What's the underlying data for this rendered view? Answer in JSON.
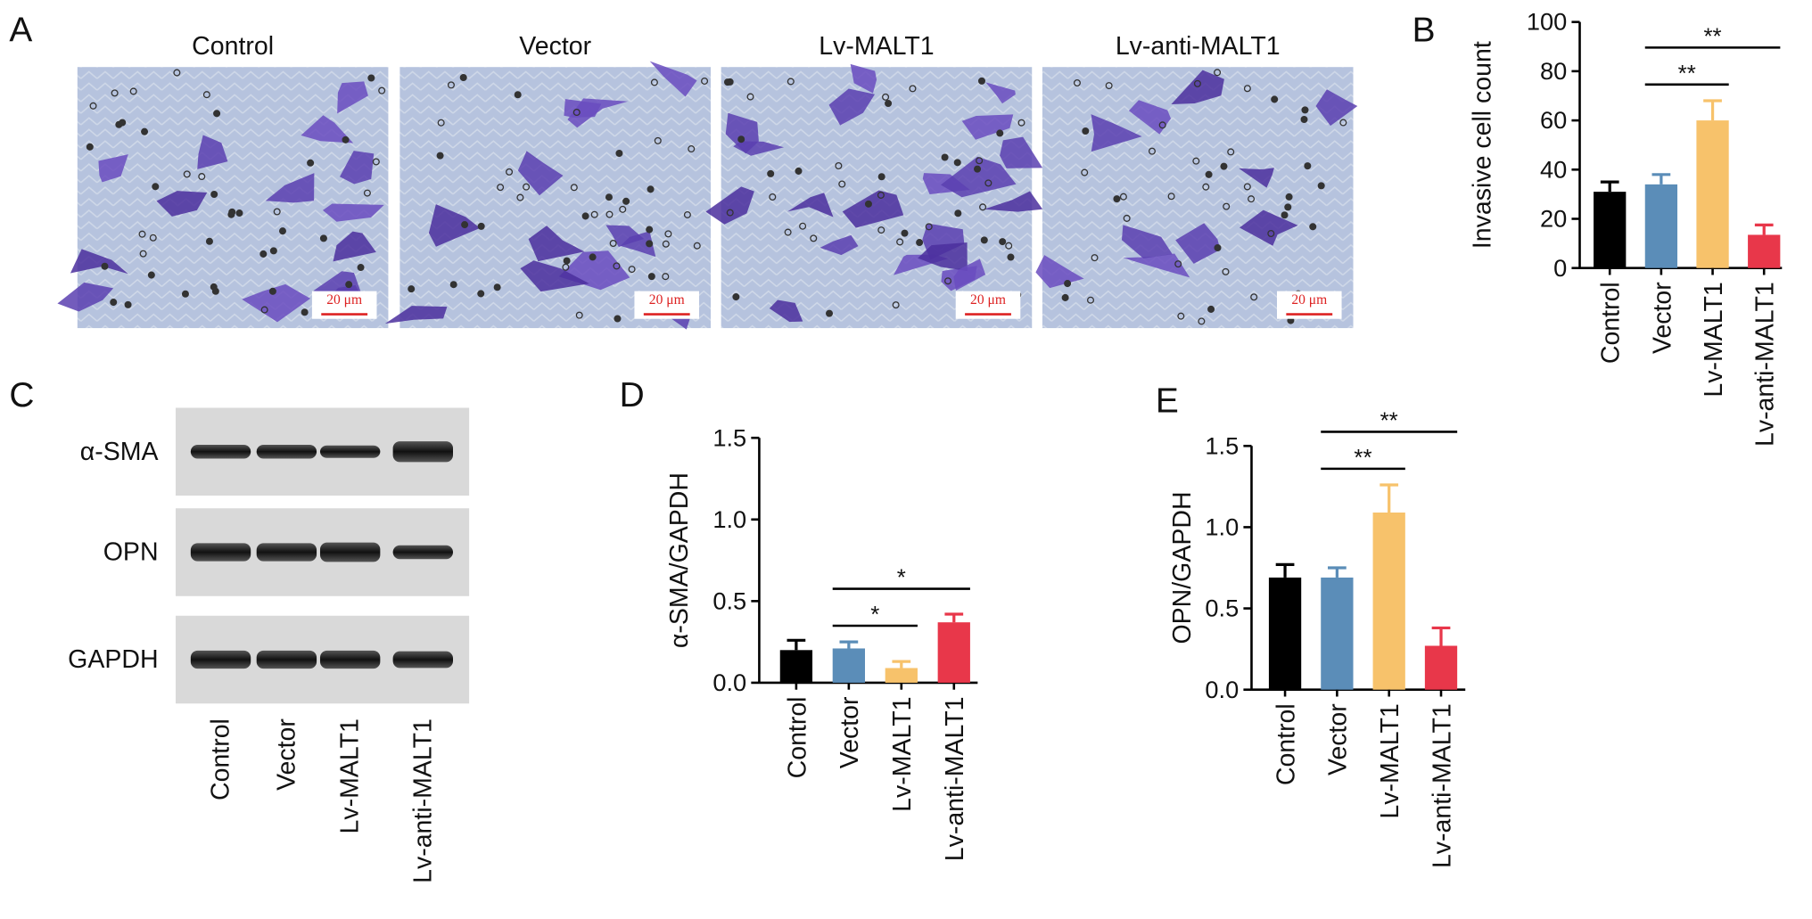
{
  "micrographs": {
    "panel": "A",
    "titles": [
      "Control",
      "Vector",
      "Lv-MALT1",
      "Lv-anti-MALT1"
    ],
    "scale_bar": "20 μm"
  },
  "western_blot": {
    "panel": "C",
    "rows": [
      "α-SMA",
      "OPN",
      "GAPDH"
    ],
    "lanes": [
      "Control",
      "Vector",
      "Lv-MALT1",
      "Lv-anti-MALT1"
    ]
  },
  "chart_data": [
    {
      "type": "bar",
      "panel": "B",
      "ylabel": "Invasive cell count",
      "categories": [
        "Control",
        "Vector",
        "Lv-MALT1",
        "Lv-anti-MALT1"
      ],
      "values": [
        31,
        34,
        60,
        13.5
      ],
      "errors": [
        4,
        4,
        8,
        4
      ],
      "colors": [
        "#000000",
        "#5b8db8",
        "#f7c26b",
        "#e8374a"
      ],
      "ylim": [
        0,
        100
      ],
      "yticks": [
        0,
        20,
        40,
        60,
        80,
        100
      ],
      "comparisons": [
        {
          "groups": [
            "Vector",
            "Lv-MALT1"
          ],
          "label": "**"
        },
        {
          "groups": [
            "Vector",
            "Lv-anti-MALT1"
          ],
          "label": "**"
        }
      ]
    },
    {
      "type": "bar",
      "panel": "D",
      "ylabel": "α-SMA/GAPDH",
      "categories": [
        "Control",
        "Vector",
        "Lv-MALT1",
        "Lv-anti-MALT1"
      ],
      "values": [
        0.2,
        0.21,
        0.09,
        0.37
      ],
      "errors": [
        0.06,
        0.04,
        0.04,
        0.05
      ],
      "colors": [
        "#000000",
        "#5b8db8",
        "#f7c26b",
        "#e8374a"
      ],
      "ylim": [
        0,
        1.5
      ],
      "yticks": [
        {
          "value": 0,
          "label": "0.0"
        },
        0.5,
        {
          "value": 1,
          "label": "1.0"
        },
        1.5
      ],
      "comparisons": [
        {
          "groups": [
            "Vector",
            "Lv-MALT1"
          ],
          "label": "*"
        },
        {
          "groups": [
            "Vector",
            "Lv-anti-MALT1"
          ],
          "label": "*"
        }
      ]
    },
    {
      "type": "bar",
      "panel": "E",
      "ylabel": "OPN/GAPDH",
      "categories": [
        "Control",
        "Vector",
        "Lv-MALT1",
        "Lv-anti-MALT1"
      ],
      "values": [
        0.69,
        0.69,
        1.09,
        0.27
      ],
      "errors": [
        0.08,
        0.06,
        0.17,
        0.11
      ],
      "colors": [
        "#000000",
        "#5b8db8",
        "#f7c26b",
        "#e8374a"
      ],
      "ylim": [
        0,
        1.5
      ],
      "yticks": [
        {
          "value": 0,
          "label": "0.0"
        },
        0.5,
        {
          "value": 1,
          "label": "1.0"
        },
        1.5
      ],
      "comparisons": [
        {
          "groups": [
            "Vector",
            "Lv-MALT1"
          ],
          "label": "**"
        },
        {
          "groups": [
            "Vector",
            "Lv-anti-MALT1"
          ],
          "label": "**"
        }
      ]
    }
  ]
}
